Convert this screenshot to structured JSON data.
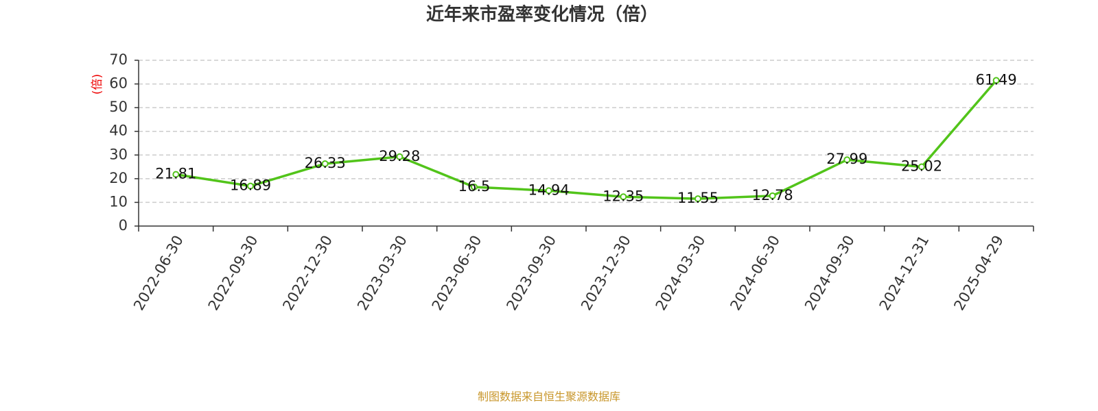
{
  "chart_data": {
    "type": "line",
    "title": "近年来市盈率变化情况（倍）",
    "y_label": "(倍)",
    "categories": [
      "2022-06-30",
      "2022-09-30",
      "2022-12-30",
      "2023-03-30",
      "2023-06-30",
      "2023-09-30",
      "2023-12-30",
      "2024-03-30",
      "2024-06-30",
      "2024-09-30",
      "2024-12-31",
      "2025-04-29"
    ],
    "series": [
      {
        "color": "#52c41a",
        "values": [
          21.81,
          16.89,
          26.33,
          29.28,
          16.5,
          14.94,
          12.35,
          11.55,
          12.78,
          27.99,
          25.02,
          61.49
        ]
      }
    ],
    "ylim": [
      0,
      70
    ],
    "yticks": [
      0,
      10,
      20,
      30,
      40,
      50,
      60,
      70
    ],
    "grid": true,
    "source": "制图数据来自恒生聚源数据库"
  }
}
